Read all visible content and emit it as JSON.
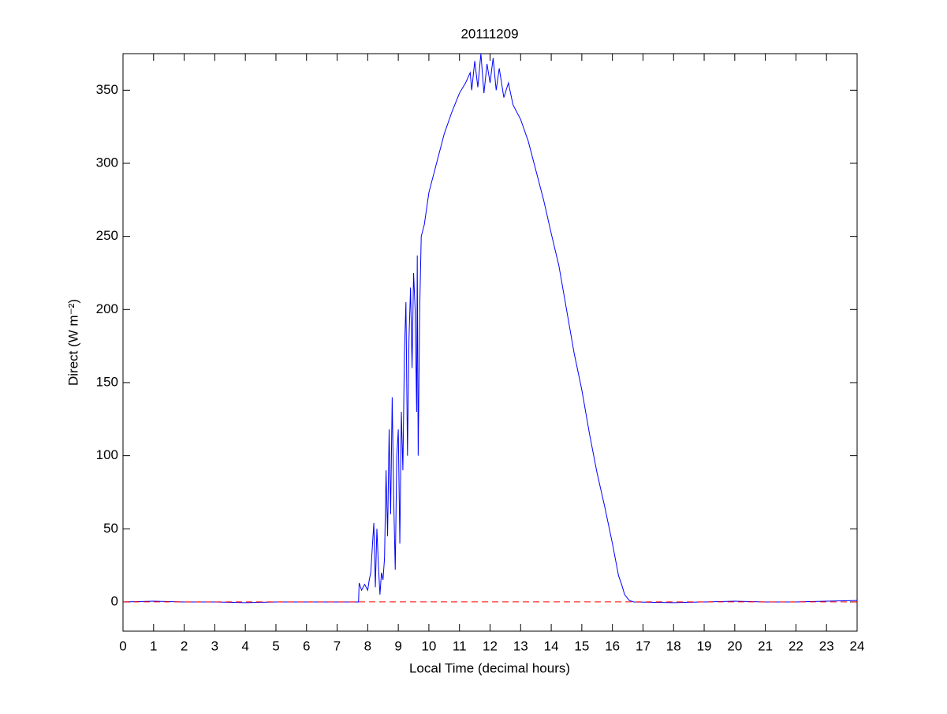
{
  "chart_data": {
    "type": "line",
    "title": "20111209",
    "x_label": "Local Time (decimal hours)",
    "y_label": "Direct (W m⁻²)",
    "color": "#0000ff",
    "x": [
      0,
      1,
      2,
      3,
      4,
      5,
      6,
      7,
      7.7,
      7.72,
      7.8,
      7.9,
      8.0,
      8.05,
      8.1,
      8.2,
      8.25,
      8.3,
      8.35,
      8.4,
      8.45,
      8.5,
      8.55,
      8.6,
      8.65,
      8.7,
      8.75,
      8.8,
      8.85,
      8.9,
      8.95,
      9.0,
      9.05,
      9.1,
      9.15,
      9.2,
      9.25,
      9.3,
      9.35,
      9.4,
      9.45,
      9.5,
      9.55,
      9.6,
      9.62,
      9.65,
      9.7,
      9.75,
      9.85,
      10.0,
      10.25,
      10.5,
      10.75,
      11.0,
      11.2,
      11.35,
      11.4,
      11.5,
      11.6,
      11.7,
      11.8,
      11.9,
      12.0,
      12.1,
      12.2,
      12.3,
      12.45,
      12.6,
      12.75,
      13.0,
      13.25,
      13.5,
      13.75,
      14.0,
      14.25,
      14.5,
      14.75,
      15.0,
      15.25,
      15.5,
      15.75,
      16.0,
      16.2,
      16.3,
      16.4,
      16.55,
      16.7,
      18,
      19,
      20,
      21,
      22,
      23,
      24
    ],
    "values": [
      0,
      0.5,
      0,
      0,
      -0.5,
      0,
      0,
      0,
      0,
      13,
      8,
      12,
      8,
      15,
      20,
      54,
      10,
      50,
      25,
      5,
      20,
      15,
      30,
      90,
      45,
      118,
      60,
      140,
      70,
      22,
      100,
      118,
      40,
      130,
      90,
      170,
      205,
      100,
      180,
      215,
      160,
      225,
      200,
      130,
      237,
      100,
      200,
      250,
      258,
      280,
      300,
      320,
      335,
      348,
      355,
      362,
      350,
      370,
      352,
      375,
      348,
      368,
      355,
      372,
      350,
      365,
      345,
      355,
      340,
      330,
      315,
      295,
      275,
      252,
      230,
      200,
      170,
      145,
      115,
      88,
      65,
      40,
      18,
      12,
      5,
      1,
      0,
      -0.5,
      0,
      0.5,
      0,
      0,
      0.5,
      1
    ],
    "reference_line": {
      "y": 0,
      "color": "#ff0000",
      "dashed": true
    },
    "xlim": [
      0,
      24
    ],
    "xticks": [
      0,
      1,
      2,
      3,
      4,
      5,
      6,
      7,
      8,
      9,
      10,
      11,
      12,
      13,
      14,
      15,
      16,
      17,
      18,
      19,
      20,
      21,
      22,
      23,
      24
    ],
    "ylim": [
      -20,
      375
    ],
    "yticks": [
      0,
      50,
      100,
      150,
      200,
      250,
      300,
      350
    ],
    "grid": false
  }
}
